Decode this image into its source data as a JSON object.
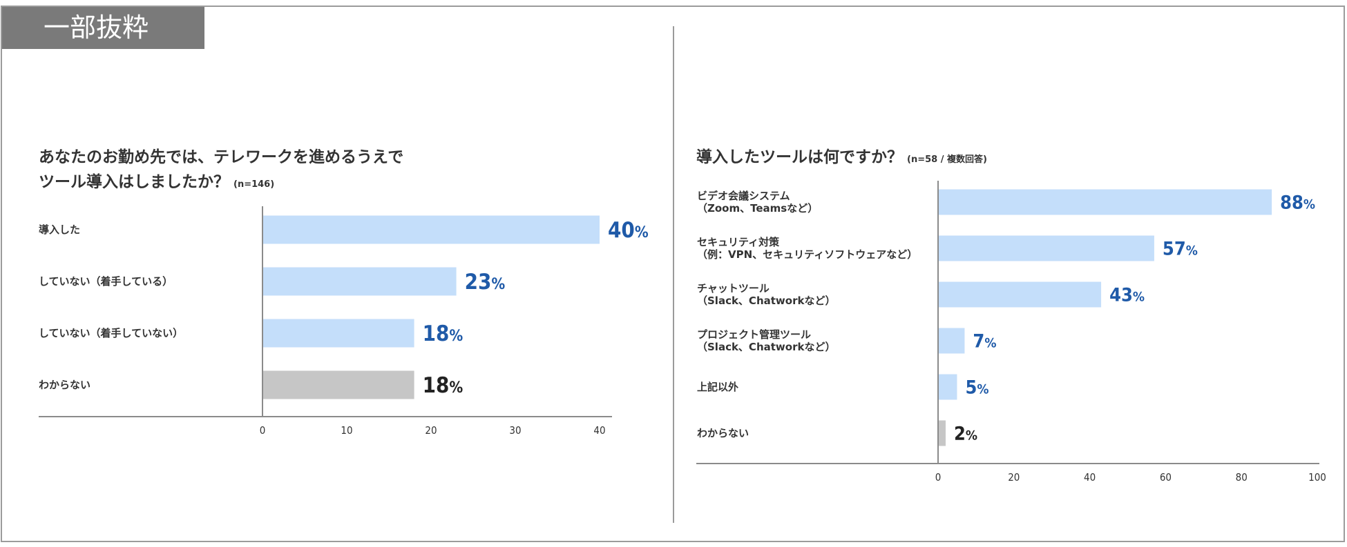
{
  "section_tag": "一部抜粋",
  "chart_data": [
    {
      "type": "bar",
      "orientation": "horizontal",
      "title_lines": [
        "あなたのお勤め先では、テレワークを進めるうえで",
        "ツール導入はしましたか？"
      ],
      "note": "(n=146)",
      "categories": [
        "導入した",
        "していない（着手している）",
        "していない（着手していない）",
        "わからない"
      ],
      "values": [
        40,
        23,
        18,
        18
      ],
      "value_labels": [
        "40",
        "23",
        "18",
        "18"
      ],
      "unit": "%",
      "highlight": [
        true,
        true,
        true,
        false
      ],
      "xlim": [
        0,
        40
      ],
      "xticks": [
        "0",
        "10",
        "20",
        "30",
        "40"
      ]
    },
    {
      "type": "bar",
      "orientation": "horizontal",
      "title_lines": [
        "導入したツールは何ですか？"
      ],
      "note": "(n=58 / 複数回答)",
      "categories": [
        [
          "ビデオ会議システム",
          "（Zoom、Teamsなど）"
        ],
        [
          "セキュリティ対策",
          "（例：VPN、セキュリティソフトウェアなど）"
        ],
        [
          "チャットツール",
          "（Slack、Chatworkなど）"
        ],
        [
          "プロジェクト管理ツール",
          "（Slack、Chatworkなど）"
        ],
        [
          "上記以外"
        ],
        [
          "わからない"
        ]
      ],
      "values": [
        88,
        57,
        43,
        7,
        5,
        2
      ],
      "value_labels": [
        "88",
        "57",
        "43",
        "7",
        "5",
        "2"
      ],
      "unit": "%",
      "highlight": [
        true,
        true,
        true,
        true,
        true,
        false
      ],
      "xlim": [
        0,
        100
      ],
      "xticks": [
        "0",
        "20",
        "40",
        "60",
        "80",
        "100"
      ]
    }
  ],
  "colors": {
    "bar_highlight": "#c4defa",
    "bar_other": "#c6c6c6",
    "value_highlight": "#1f5aa8",
    "value_other": "#222222",
    "axis": "#8a8a8a"
  }
}
